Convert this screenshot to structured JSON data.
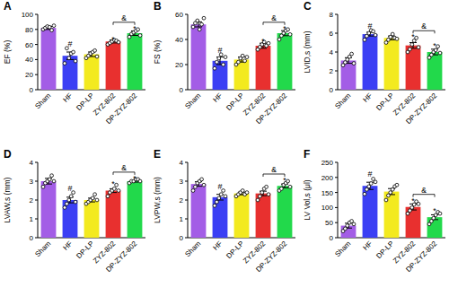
{
  "chart_data": [
    {
      "type": "bar",
      "title": "A",
      "y_label": "EF (%)",
      "categories": [
        "Sham",
        "HF",
        "DP-LP",
        "ZYZ-802",
        "DP-ZYZ-802"
      ],
      "colors": [
        "#a35de6",
        "#3b3ff4",
        "#f3ea1f",
        "#e8302f",
        "#22d94b"
      ],
      "values": [
        82,
        45,
        47,
        64,
        75
      ],
      "errors": [
        2,
        5,
        3,
        2,
        3
      ],
      "points": [
        [
          80,
          82,
          84,
          83,
          79,
          85
        ],
        [
          35,
          55,
          42,
          48,
          50,
          38
        ],
        [
          42,
          45,
          48,
          50,
          52,
          44
        ],
        [
          60,
          62,
          64,
          66,
          65,
          63
        ],
        [
          70,
          74,
          76,
          78,
          80,
          72
        ]
      ],
      "annotations": [
        null,
        "#",
        null,
        "*",
        "*"
      ],
      "comparison": {
        "categories": [
          "ZYZ-802",
          "DP-ZYZ-802"
        ],
        "label": "&"
      },
      "ylim": [
        0,
        100
      ],
      "yticks": [
        0,
        20,
        40,
        60,
        80,
        100
      ]
    },
    {
      "type": "bar",
      "title": "B",
      "y_label": "FS (%)",
      "categories": [
        "Sham",
        "HF",
        "DP-LP",
        "ZYZ-802",
        "DP-ZYZ-802"
      ],
      "colors": [
        "#a35de6",
        "#3b3ff4",
        "#f3ea1f",
        "#e8302f",
        "#22d94b"
      ],
      "values": [
        52,
        23,
        24,
        35,
        45
      ],
      "errors": [
        2,
        3,
        2,
        2,
        2
      ],
      "points": [
        [
          50,
          53,
          55,
          48,
          52,
          57
        ],
        [
          17,
          22,
          25,
          28,
          20,
          26
        ],
        [
          20,
          22,
          25,
          27,
          23,
          26
        ],
        [
          32,
          34,
          36,
          38,
          35,
          37
        ],
        [
          40,
          43,
          45,
          47,
          48,
          44
        ]
      ],
      "annotations": [
        null,
        "#",
        null,
        "*",
        "*"
      ],
      "comparison": {
        "categories": [
          "ZYZ-802",
          "DP-ZYZ-802"
        ],
        "label": "&"
      },
      "ylim": [
        0,
        60
      ],
      "yticks": [
        0,
        20,
        40,
        60
      ]
    },
    {
      "type": "bar",
      "title": "C",
      "y_label": "LVID,s (mm)",
      "categories": [
        "Sham",
        "HF",
        "DP-LP",
        "ZYZ-802",
        "DP-ZYZ-802"
      ],
      "colors": [
        "#a35de6",
        "#3b3ff4",
        "#f3ea1f",
        "#e8302f",
        "#22d94b"
      ],
      "values": [
        3.1,
        5.9,
        5.5,
        4.7,
        4.0
      ],
      "errors": [
        0.3,
        0.2,
        0.2,
        0.3,
        0.3
      ],
      "points": [
        [
          2.6,
          2.9,
          3.2,
          3.5,
          3.8,
          2.8
        ],
        [
          5.3,
          5.7,
          6.0,
          6.3,
          6.2,
          5.8
        ],
        [
          5.0,
          5.3,
          5.6,
          5.9,
          5.5,
          5.4
        ],
        [
          4.0,
          4.3,
          4.8,
          5.2,
          5.5,
          4.5
        ],
        [
          3.4,
          3.7,
          4.0,
          4.2,
          4.6,
          3.9
        ]
      ],
      "annotations": [
        null,
        "#",
        null,
        "*",
        "*"
      ],
      "comparison": {
        "categories": [
          "ZYZ-802",
          "DP-ZYZ-802"
        ],
        "label": "&"
      },
      "ylim": [
        0,
        8
      ],
      "yticks": [
        0,
        2,
        4,
        6,
        8
      ]
    },
    {
      "type": "bar",
      "title": "D",
      "y_label": "LVAW,s (mm)",
      "categories": [
        "Sham",
        "HF",
        "DP-LP",
        "ZYZ-802",
        "DP-ZYZ-802"
      ],
      "colors": [
        "#a35de6",
        "#3b3ff4",
        "#f3ea1f",
        "#e8302f",
        "#22d94b"
      ],
      "values": [
        3.0,
        2.0,
        2.0,
        2.5,
        3.0
      ],
      "errors": [
        0.15,
        0.15,
        0.1,
        0.1,
        0.05
      ],
      "points": [
        [
          2.7,
          2.9,
          3.0,
          3.1,
          3.3,
          3.0
        ],
        [
          1.6,
          1.8,
          2.0,
          2.2,
          2.4,
          1.9
        ],
        [
          1.8,
          1.9,
          2.0,
          2.1,
          2.3,
          2.0
        ],
        [
          2.2,
          2.4,
          2.5,
          2.6,
          2.8,
          2.5
        ],
        [
          2.9,
          3.0,
          3.0,
          3.1,
          3.1,
          3.0
        ]
      ],
      "annotations": [
        null,
        "#",
        null,
        "*",
        "*"
      ],
      "comparison": {
        "categories": [
          "ZYZ-802",
          "DP-ZYZ-802"
        ],
        "label": "&"
      },
      "ylim": [
        0,
        4
      ],
      "yticks": [
        0,
        1,
        2,
        3,
        4
      ]
    },
    {
      "type": "bar",
      "title": "E",
      "y_label": "LVPW,s (mm)",
      "categories": [
        "Sham",
        "HF",
        "DP-LP",
        "ZYZ-802",
        "DP-ZYZ-802"
      ],
      "colors": [
        "#a35de6",
        "#3b3ff4",
        "#f3ea1f",
        "#e8302f",
        "#22d94b"
      ],
      "values": [
        2.85,
        2.15,
        2.35,
        2.35,
        2.75
      ],
      "errors": [
        0.12,
        0.15,
        0.07,
        0.12,
        0.1
      ],
      "points": [
        [
          2.5,
          2.7,
          2.9,
          3.0,
          3.1,
          2.8
        ],
        [
          1.7,
          1.9,
          2.1,
          2.3,
          2.5,
          2.2
        ],
        [
          2.2,
          2.3,
          2.4,
          2.5,
          2.3,
          2.4
        ],
        [
          2.0,
          2.2,
          2.4,
          2.6,
          2.7,
          2.3
        ],
        [
          2.5,
          2.6,
          2.8,
          2.9,
          3.0,
          2.7
        ]
      ],
      "annotations": [
        null,
        "#",
        null,
        null,
        "*"
      ],
      "comparison": {
        "categories": [
          "ZYZ-802",
          "DP-ZYZ-802"
        ],
        "label": "&"
      },
      "ylim": [
        0,
        4
      ],
      "yticks": [
        0,
        1,
        2,
        3,
        4
      ]
    },
    {
      "type": "bar",
      "title": "F",
      "y_label": "LV Vol,s (μl)",
      "categories": [
        "Sham",
        "HF",
        "DP-LP",
        "ZYZ-802",
        "DP-ZYZ-802"
      ],
      "colors": [
        "#a35de6",
        "#3b3ff4",
        "#f3ea1f",
        "#e8302f",
        "#22d94b"
      ],
      "values": [
        40,
        172,
        153,
        102,
        68
      ],
      "errors": [
        8,
        12,
        10,
        10,
        8
      ],
      "points": [
        [
          22,
          30,
          40,
          50,
          55,
          45
        ],
        [
          145,
          160,
          170,
          180,
          195,
          185
        ],
        [
          125,
          140,
          150,
          160,
          170,
          175
        ],
        [
          80,
          90,
          100,
          110,
          120,
          112
        ],
        [
          45,
          55,
          65,
          75,
          85,
          80
        ]
      ],
      "annotations": [
        null,
        "#",
        null,
        "*",
        "*"
      ],
      "comparison": {
        "categories": [
          "ZYZ-802",
          "DP-ZYZ-802"
        ],
        "label": "&"
      },
      "ylim": [
        0,
        250
      ],
      "yticks": [
        0,
        50,
        100,
        150,
        200,
        250
      ]
    }
  ]
}
